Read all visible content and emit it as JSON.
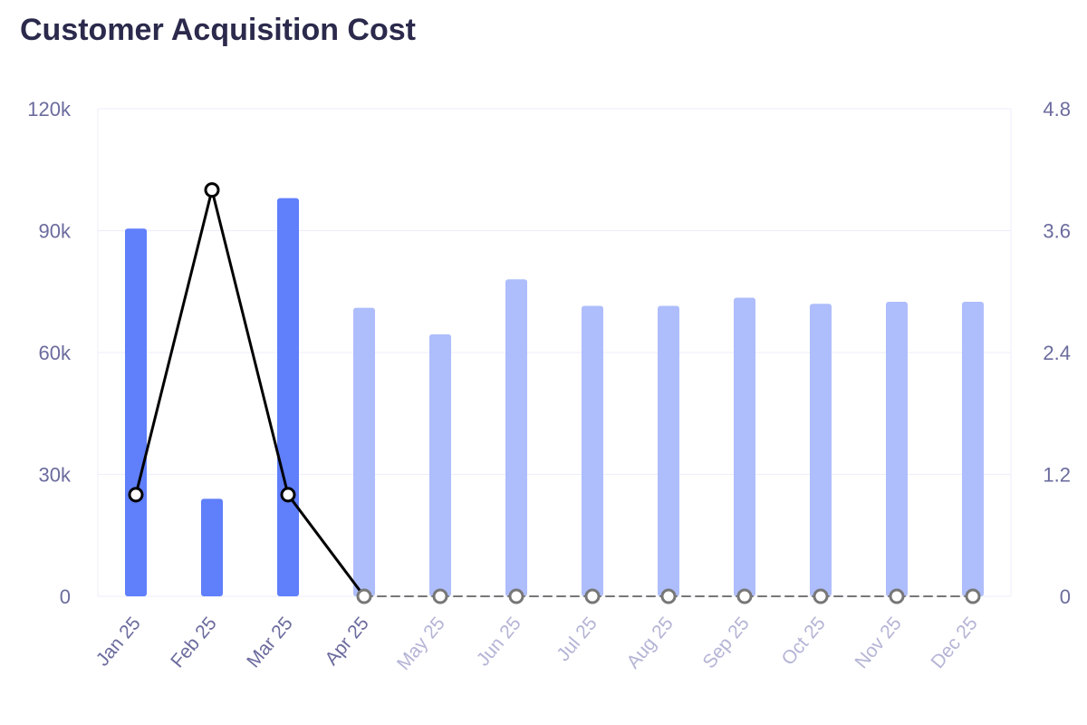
{
  "chart_data": {
    "type": "bar",
    "title": "Customer Acquisition Cost",
    "categories": [
      "Jan 25",
      "Feb 25",
      "Mar 25",
      "Apr 25",
      "May 25",
      "Jun 25",
      "Jul 25",
      "Aug 25",
      "Sep 25",
      "Oct 25",
      "Nov 25",
      "Dec 25"
    ],
    "actual_through_index": 3,
    "series": [
      {
        "type": "bar",
        "axis": "left",
        "values": [
          90500,
          24000,
          98000,
          71000,
          64500,
          78000,
          71500,
          71500,
          73500,
          72000,
          72500,
          72500
        ],
        "color": "#5f7ffb",
        "projected_color": "#aebdfb"
      },
      {
        "type": "line",
        "axis": "right",
        "values": [
          1.0,
          4.0,
          1.0,
          0,
          0,
          0,
          0,
          0,
          0,
          0,
          0,
          0
        ],
        "color": "#000000",
        "projected_color": "#777777"
      }
    ],
    "y_left": {
      "min": 0,
      "max": 120000,
      "ticks": [
        0,
        30000,
        60000,
        90000,
        120000
      ],
      "tick_labels": [
        "0",
        "30k",
        "60k",
        "90k",
        "120k"
      ]
    },
    "y_right": {
      "min": 0,
      "max": 4.8,
      "ticks": [
        0,
        1.2,
        2.4,
        3.6,
        4.8
      ],
      "tick_labels": [
        "0",
        "1.2",
        "2.4",
        "3.6",
        "4.8"
      ]
    },
    "grid": true,
    "legend": "none",
    "tick_color": "#6b6b9e",
    "projected_tick_color": "#b4b4d6",
    "grid_color": "#eeeefb"
  }
}
